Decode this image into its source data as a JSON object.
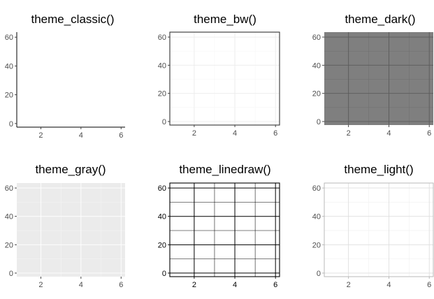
{
  "chart_data": [
    {
      "type": "scatter",
      "title": "theme_classic()",
      "theme": "classic",
      "xlim": [
        0.8,
        6.2
      ],
      "ylim": [
        -2.5,
        63.5
      ],
      "x_ticks": [
        2,
        4,
        6
      ],
      "y_ticks": [
        0,
        20,
        40,
        60
      ],
      "x": [],
      "y": [],
      "grid": false,
      "style": {
        "panel_bg": "#ffffff",
        "border": "none",
        "axis_lines": "#000000",
        "grid_major": "",
        "grid_minor": "",
        "tick_text": "#4d4d4d"
      }
    },
    {
      "type": "scatter",
      "title": "theme_bw()",
      "theme": "bw",
      "xlim": [
        0.8,
        6.2
      ],
      "ylim": [
        -2.5,
        63.5
      ],
      "x_ticks": [
        2,
        4,
        6
      ],
      "y_ticks": [
        0,
        20,
        40,
        60
      ],
      "x": [],
      "y": [],
      "grid": true,
      "style": {
        "panel_bg": "#ffffff",
        "border": "#333333",
        "axis_lines": "",
        "grid_major": "#ebebeb",
        "grid_minor": "#f5f5f5",
        "tick_text": "#4d4d4d"
      }
    },
    {
      "type": "scatter",
      "title": "theme_dark()",
      "theme": "dark",
      "xlim": [
        0.8,
        6.2
      ],
      "ylim": [
        -2.5,
        63.5
      ],
      "x_ticks": [
        2,
        4,
        6
      ],
      "y_ticks": [
        0,
        20,
        40,
        60
      ],
      "x": [],
      "y": [],
      "grid": true,
      "style": {
        "panel_bg": "#7f7f7f",
        "border": "none",
        "axis_lines": "",
        "grid_major": "#5b5b5b",
        "grid_minor": "#6e6e6e",
        "tick_text": "#4d4d4d"
      }
    },
    {
      "type": "scatter",
      "title": "theme_gray()",
      "theme": "gray",
      "xlim": [
        0.8,
        6.2
      ],
      "ylim": [
        -2.5,
        63.5
      ],
      "x_ticks": [
        2,
        4,
        6
      ],
      "y_ticks": [
        0,
        20,
        40,
        60
      ],
      "x": [],
      "y": [],
      "grid": true,
      "style": {
        "panel_bg": "#ebebeb",
        "border": "none",
        "axis_lines": "",
        "grid_major": "#ffffff",
        "grid_minor": "#f5f5f5",
        "tick_text": "#4d4d4d"
      }
    },
    {
      "type": "scatter",
      "title": "theme_linedraw()",
      "theme": "linedraw",
      "xlim": [
        0.8,
        6.2
      ],
      "ylim": [
        -2.5,
        63.5
      ],
      "x_ticks": [
        2,
        4,
        6
      ],
      "y_ticks": [
        0,
        20,
        40,
        60
      ],
      "x": [],
      "y": [],
      "grid": true,
      "style": {
        "panel_bg": "#ffffff",
        "border": "#000000",
        "axis_lines": "",
        "grid_major": "#000000",
        "grid_minor": "#000000",
        "tick_text": "#000000"
      }
    },
    {
      "type": "scatter",
      "title": "theme_light()",
      "theme": "light",
      "xlim": [
        0.8,
        6.2
      ],
      "ylim": [
        -2.5,
        63.5
      ],
      "x_ticks": [
        2,
        4,
        6
      ],
      "y_ticks": [
        0,
        20,
        40,
        60
      ],
      "x": [],
      "y": [],
      "grid": true,
      "style": {
        "panel_bg": "#ffffff",
        "border": "#b3b3b3",
        "axis_lines": "",
        "grid_major": "#dedede",
        "grid_minor": "#ededed",
        "tick_text": "#4d4d4d"
      }
    }
  ]
}
